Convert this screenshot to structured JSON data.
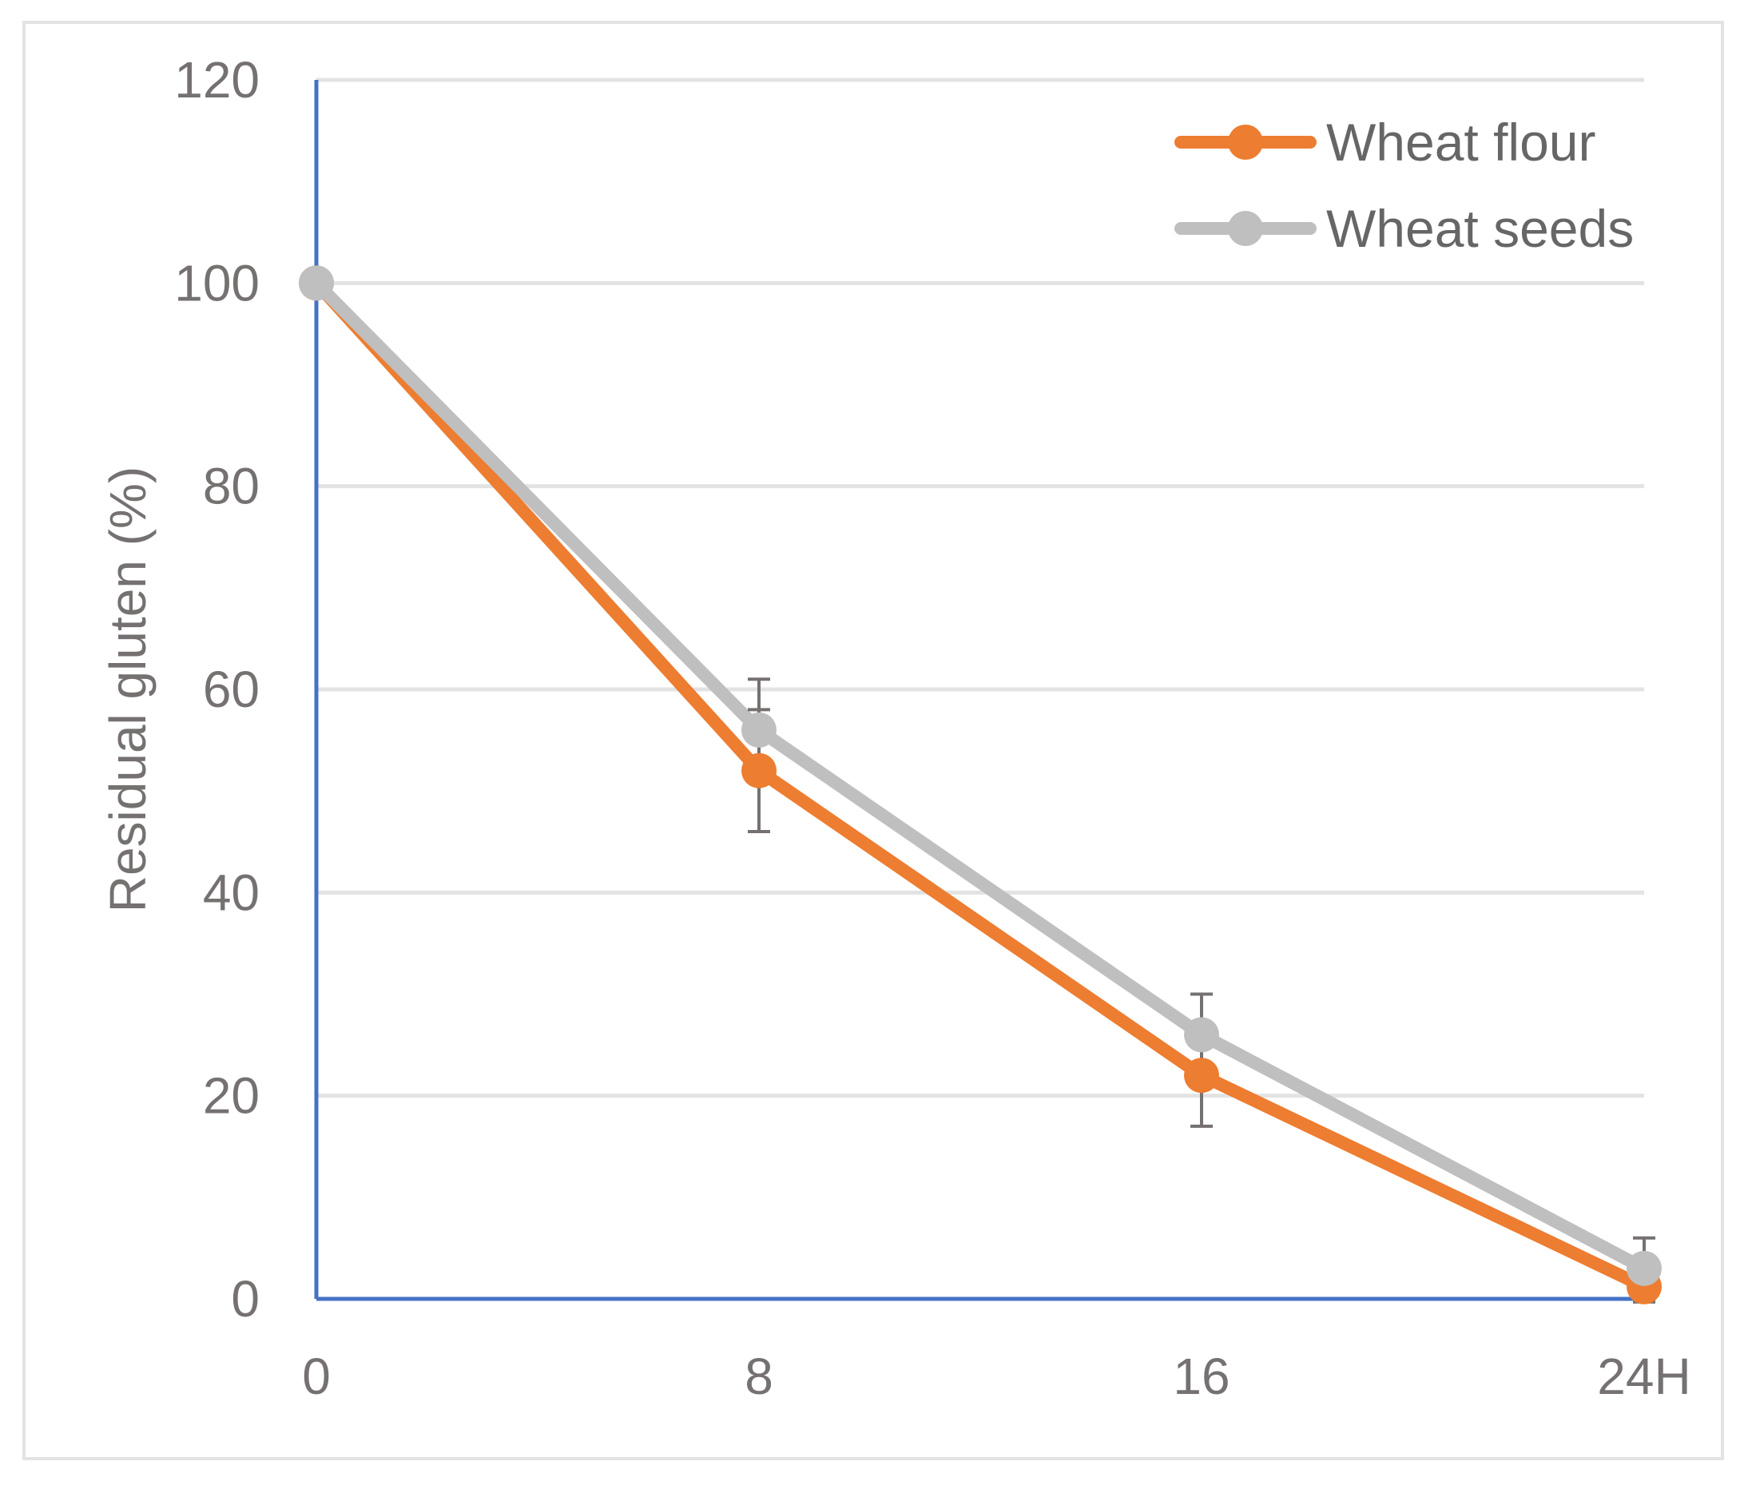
{
  "chart_data": {
    "type": "line",
    "title": "",
    "xlabel": "",
    "ylabel": "Residual gluten (%)",
    "x": [
      0,
      8,
      16,
      24
    ],
    "x_tick_labels": [
      "0",
      "8",
      "16",
      "24H"
    ],
    "y_ticks": [
      0,
      20,
      40,
      60,
      80,
      100,
      120
    ],
    "y_tick_labels": [
      "0",
      "20",
      "40",
      "60",
      "80",
      "100",
      "120"
    ],
    "xlim": [
      0,
      24
    ],
    "ylim": [
      0,
      120
    ],
    "grid": "horizontal",
    "legend_position": "top-right",
    "series": [
      {
        "name": "Wheat flour",
        "color": "#ed7d31",
        "values": [
          100,
          52,
          22,
          1.2
        ],
        "error": [
          0,
          6,
          5,
          1.5
        ]
      },
      {
        "name": "Wheat seeds",
        "color": "#bfbfbf",
        "values": [
          100,
          56,
          26,
          3
        ],
        "error": [
          0,
          5,
          4,
          3
        ]
      }
    ],
    "colors": {
      "axis": "#4472c4",
      "grid": "#e3e3e3",
      "error_bar": "#767171",
      "text": "#767171"
    }
  }
}
